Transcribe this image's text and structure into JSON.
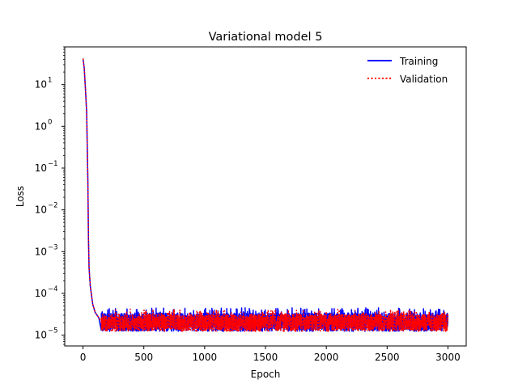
{
  "chart_data": {
    "type": "line",
    "title": "Variational model 5",
    "xlabel": "Epoch",
    "ylabel": "Loss",
    "yscale": "log",
    "xlim": [
      -150,
      3150
    ],
    "ylim": [
      5.5e-06,
      80.0
    ],
    "x_ticks": [
      0,
      500,
      1000,
      1500,
      2000,
      2500,
      3000
    ],
    "y_ticks": [
      {
        "value": 1e-05,
        "base": "10",
        "exp": "−5"
      },
      {
        "value": 0.0001,
        "base": "10",
        "exp": "−4"
      },
      {
        "value": 0.001,
        "base": "10",
        "exp": "−3"
      },
      {
        "value": 0.01,
        "base": "10",
        "exp": "−2"
      },
      {
        "value": 0.1,
        "base": "10",
        "exp": "−1"
      },
      {
        "value": 1.0,
        "base": "10",
        "exp": "0"
      },
      {
        "value": 10.0,
        "base": "10",
        "exp": "1"
      }
    ],
    "legend_position": "top-right",
    "grid": false,
    "series": [
      {
        "name": "Training",
        "color": "#0000ff",
        "style": "solid",
        "points": [
          [
            0,
            42
          ],
          [
            10,
            25
          ],
          [
            20,
            8
          ],
          [
            30,
            2.2
          ],
          [
            40,
            0.05
          ],
          [
            45,
            0.002
          ],
          [
            50,
            0.0004
          ],
          [
            60,
            0.00015
          ],
          [
            80,
            5.5e-05
          ],
          [
            100,
            3.5e-05
          ],
          [
            130,
            2.6e-05
          ],
          [
            160,
            2.2e-05
          ],
          [
            200,
            2e-05
          ],
          [
            300,
            1.9e-05
          ],
          [
            500,
            1.85e-05
          ],
          [
            1000,
            1.85e-05
          ],
          [
            1500,
            1.85e-05
          ],
          [
            2000,
            1.85e-05
          ],
          [
            2500,
            1.85e-05
          ],
          [
            3000,
            1.8e-05
          ]
        ],
        "noise_band": {
          "from_epoch": 150,
          "to_epoch": 3000,
          "low": 1.2e-05,
          "high": 3.5e-05,
          "peak": 4.5e-05
        }
      },
      {
        "name": "Validation",
        "color": "#ff0000",
        "style": "dotted",
        "points": [
          [
            0,
            42
          ],
          [
            10,
            25
          ],
          [
            20,
            8
          ],
          [
            30,
            2.2
          ],
          [
            40,
            0.05
          ],
          [
            45,
            0.002
          ],
          [
            50,
            0.0004
          ],
          [
            60,
            0.00015
          ],
          [
            80,
            5.5e-05
          ],
          [
            100,
            3.5e-05
          ],
          [
            130,
            2.6e-05
          ],
          [
            160,
            2.2e-05
          ],
          [
            200,
            2e-05
          ],
          [
            300,
            1.9e-05
          ],
          [
            500,
            1.85e-05
          ],
          [
            1000,
            1.85e-05
          ],
          [
            1500,
            1.85e-05
          ],
          [
            2000,
            1.85e-05
          ],
          [
            2500,
            1.85e-05
          ],
          [
            3000,
            1.8e-05
          ]
        ],
        "noise_band": {
          "from_epoch": 150,
          "to_epoch": 3000,
          "low": 1.2e-05,
          "high": 3.3e-05,
          "peak": 4.2e-05
        }
      }
    ]
  }
}
